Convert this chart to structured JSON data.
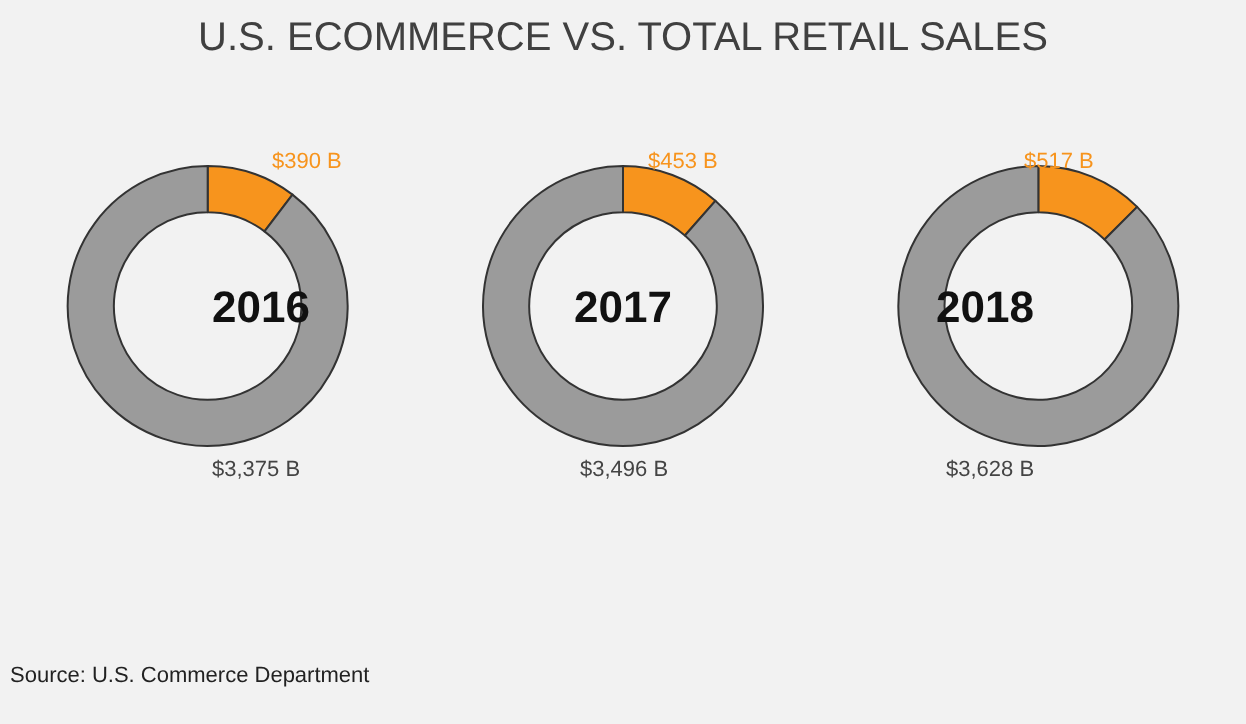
{
  "chart_data": [
    {
      "type": "other",
      "title": "U.S. ECOMMERCE VS. TOTAL RETAIL SALES",
      "annotations": [
        "Source: U.S. Commerce Department"
      ]
    },
    {
      "type": "donut",
      "title": "2016",
      "categories": [
        null,
        null
      ],
      "values": [
        390,
        3375
      ],
      "colors": [
        "#f7941d",
        "#9b9b9b"
      ],
      "value_labels": [
        "$390 B",
        "$3,375 B"
      ]
    },
    {
      "type": "donut",
      "title": "2017",
      "categories": [
        null,
        null
      ],
      "values": [
        453,
        3496
      ],
      "colors": [
        "#f7941d",
        "#9b9b9b"
      ],
      "value_labels": [
        "$453 B",
        "$3,496 B"
      ]
    },
    {
      "type": "donut",
      "title": "2018",
      "categories": [
        null,
        null
      ],
      "values": [
        517,
        3628
      ],
      "colors": [
        "#f7941d",
        "#9b9b9b"
      ],
      "value_labels": [
        "$517 B",
        "$3,628 B"
      ]
    }
  ]
}
